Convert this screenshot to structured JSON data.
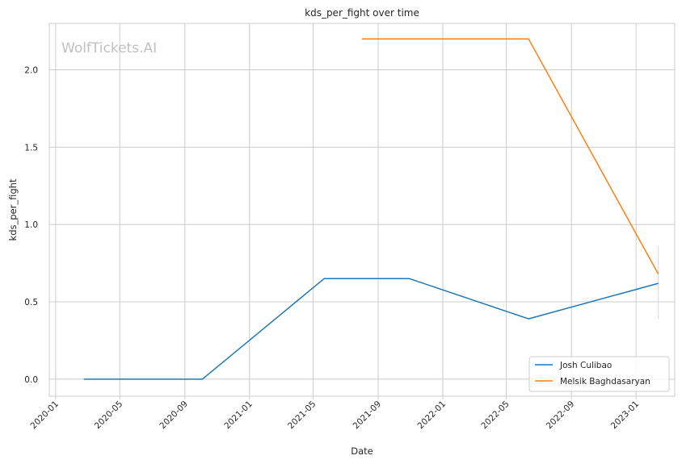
{
  "chart_data": {
    "type": "line",
    "title": "kds_per_fight over time",
    "xlabel": "Date",
    "ylabel": "kds_per_fight",
    "watermark": "WolfTickets.AI",
    "x_axis_kind": "date",
    "xlim": [
      "2019-12-20",
      "2023-03-15"
    ],
    "ylim": [
      -0.11,
      2.3
    ],
    "x_ticks": [
      "2020-01",
      "2020-05",
      "2020-09",
      "2021-01",
      "2021-05",
      "2021-09",
      "2022-01",
      "2022-05",
      "2022-09",
      "2023-01"
    ],
    "y_ticks": [
      0.0,
      0.5,
      1.0,
      1.5,
      2.0
    ],
    "y_tick_labels": [
      "0.0",
      "0.5",
      "1.0",
      "1.5",
      "2.0"
    ],
    "grid": true,
    "legend_position": "bottom-right",
    "series": [
      {
        "name": "Josh Culibao",
        "color": "#1f77b4",
        "x": [
          "2020-02-23",
          "2020-10-04",
          "2021-05-22",
          "2021-10-30",
          "2022-06-12",
          "2023-02-12"
        ],
        "y": [
          0.0,
          0.0,
          0.65,
          0.65,
          0.39,
          0.62
        ]
      },
      {
        "name": "Melsik Baghdasaryan",
        "color": "#ff7f0e",
        "x": [
          "2021-08-01",
          "2022-06-12",
          "2023-02-12"
        ],
        "y": [
          2.2,
          2.2,
          0.68
        ]
      }
    ],
    "error_bar": {
      "x": "2023-02-12",
      "low": 0.39,
      "high": 0.86
    }
  }
}
